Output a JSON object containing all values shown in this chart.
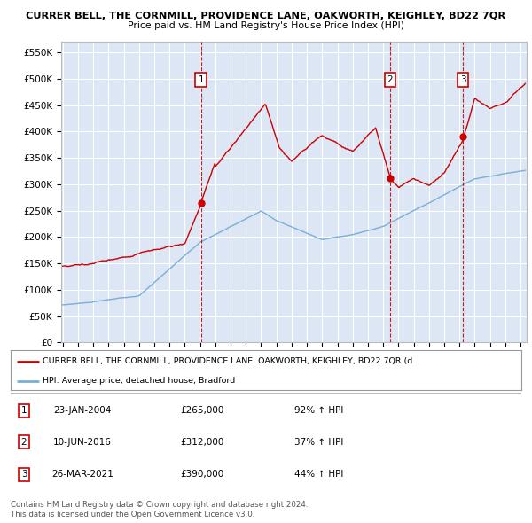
{
  "title": "CURRER BELL, THE CORNMILL, PROVIDENCE LANE, OAKWORTH, KEIGHLEY, BD22 7QR",
  "subtitle": "Price paid vs. HM Land Registry's House Price Index (HPI)",
  "ylim": [
    0,
    570000
  ],
  "yticks": [
    0,
    50000,
    100000,
    150000,
    200000,
    250000,
    300000,
    350000,
    400000,
    450000,
    500000,
    550000
  ],
  "ytick_labels": [
    "£0",
    "£50K",
    "£100K",
    "£150K",
    "£200K",
    "£250K",
    "£300K",
    "£350K",
    "£400K",
    "£450K",
    "£500K",
    "£550K"
  ],
  "background_color": "#dce6f5",
  "plot_bg_color": "#dce6f5",
  "red_line_color": "#cc0000",
  "blue_line_color": "#7bafd4",
  "vline_color": "#cc0000",
  "grid_color": "#ffffff",
  "sale_years": [
    2004.06,
    2016.45,
    2021.23
  ],
  "sale_prices": [
    265000,
    312000,
    390000
  ],
  "sale_labels": [
    "1",
    "2",
    "3"
  ],
  "legend_red_label": "CURRER BELL, THE CORNMILL, PROVIDENCE LANE, OAKWORTH, KEIGHLEY, BD22 7QR (d",
  "legend_blue_label": "HPI: Average price, detached house, Bradford",
  "table_rows": [
    [
      "1",
      "23-JAN-2004",
      "£265,000",
      "92% ↑ HPI"
    ],
    [
      "2",
      "10-JUN-2016",
      "£312,000",
      "37% ↑ HPI"
    ],
    [
      "3",
      "26-MAR-2021",
      "£390,000",
      "44% ↑ HPI"
    ]
  ],
  "footer_line1": "Contains HM Land Registry data © Crown copyright and database right 2024.",
  "footer_line2": "This data is licensed under the Open Government Licence v3.0.",
  "x_start_year": 1995,
  "x_end_year": 2025
}
